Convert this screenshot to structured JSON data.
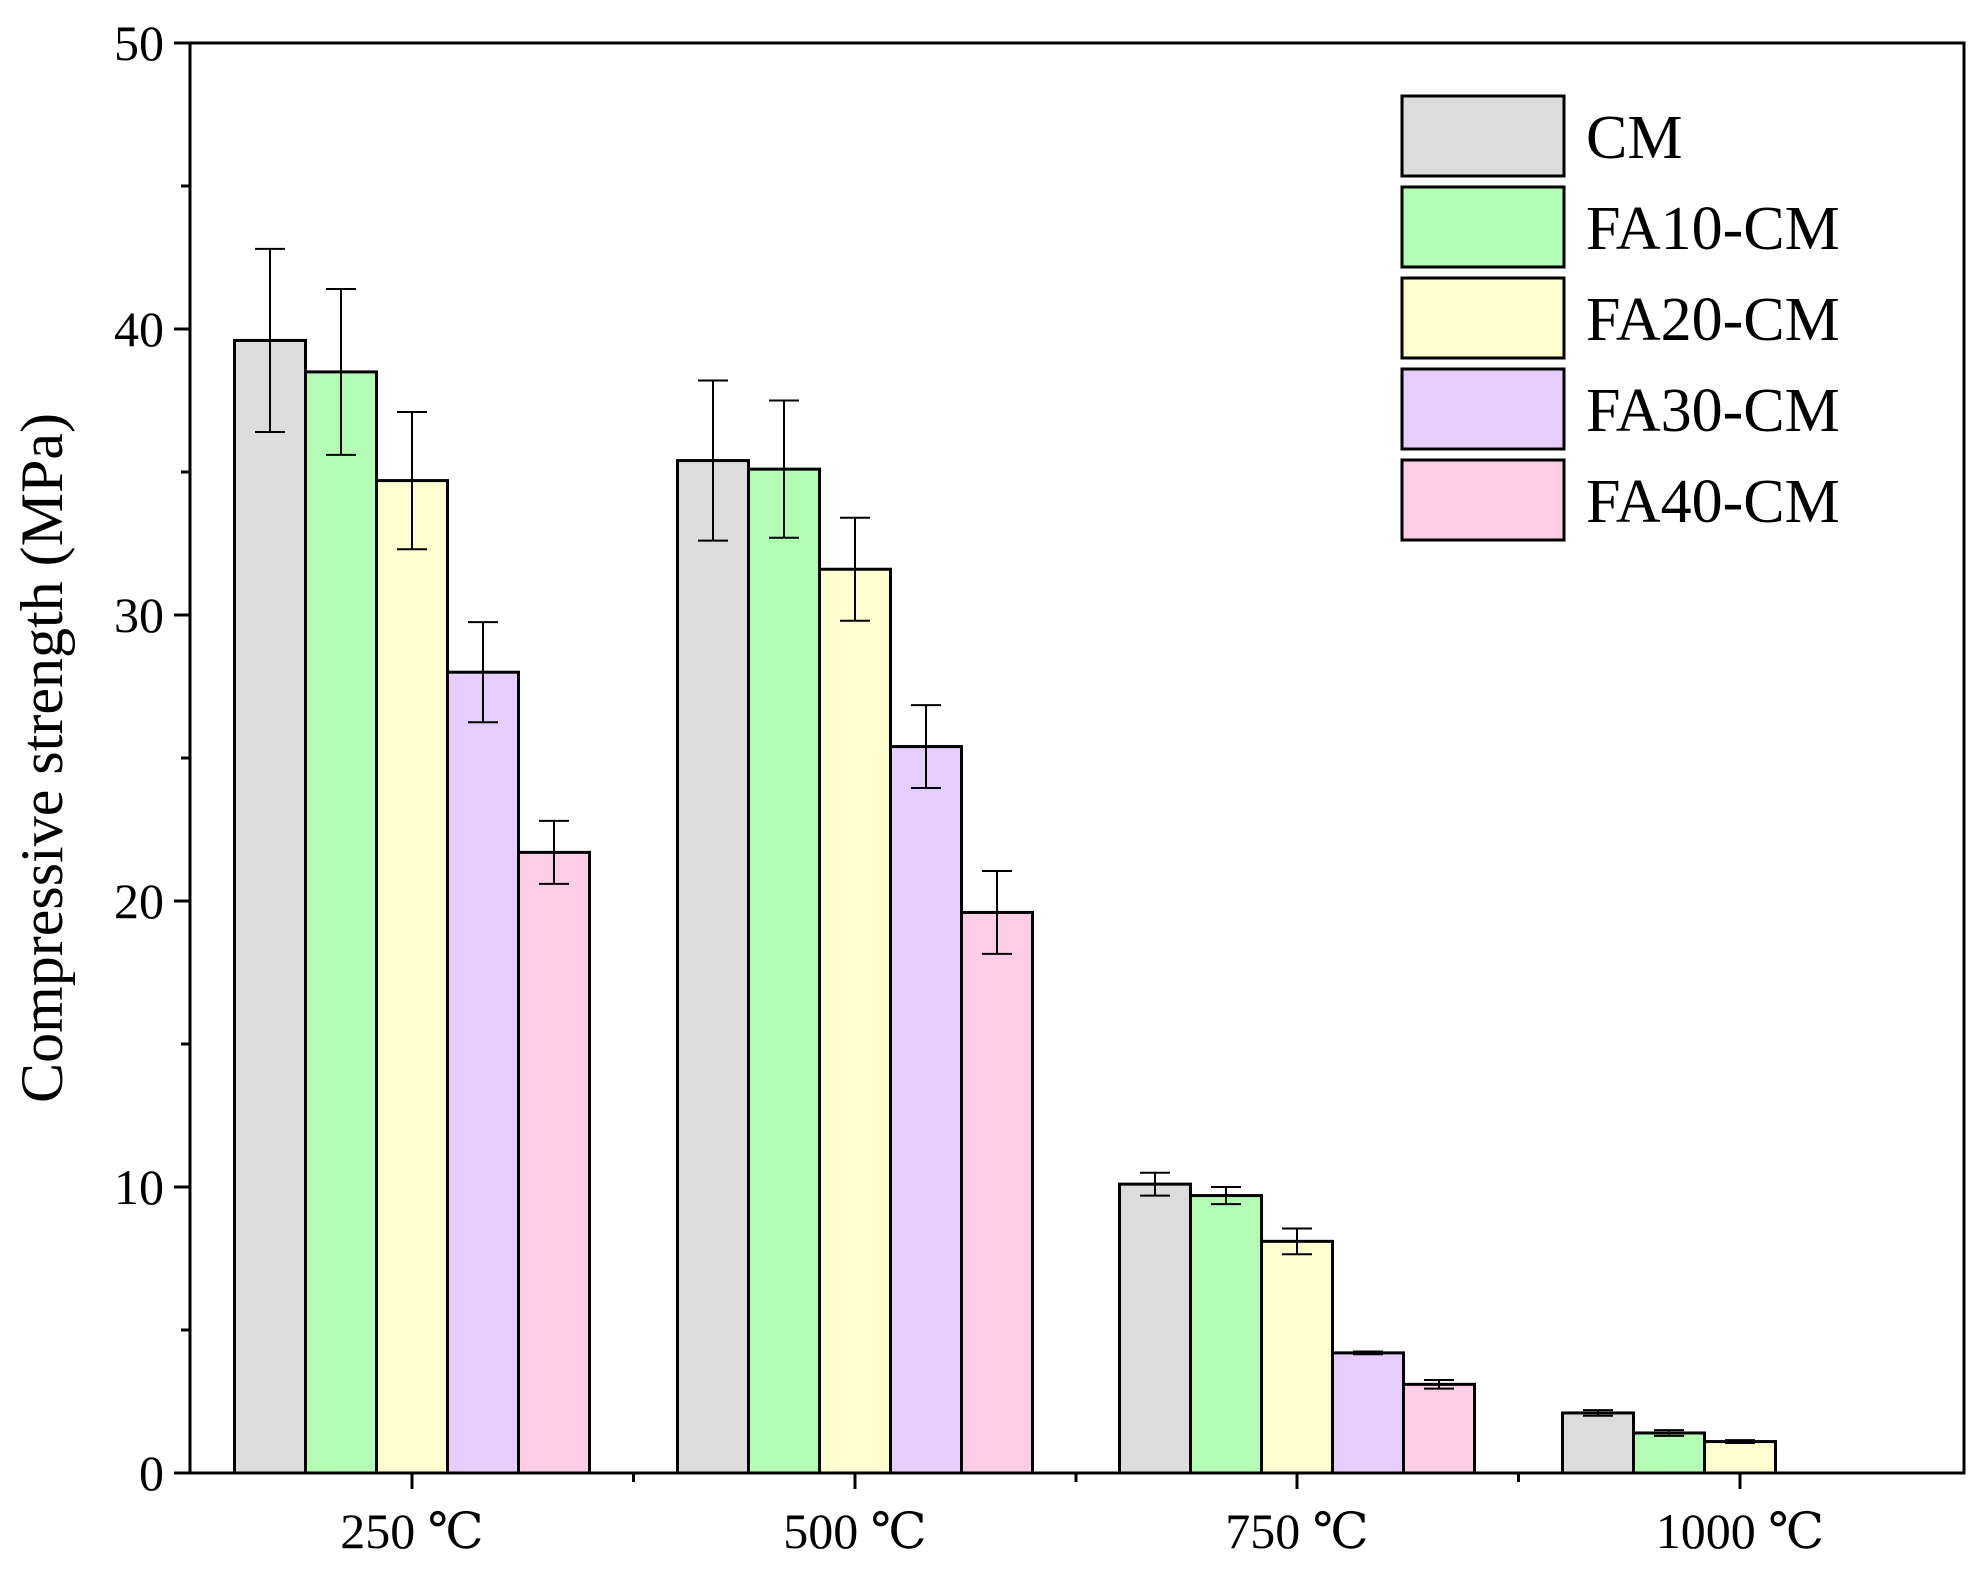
{
  "chart_data": {
    "type": "bar",
    "title": "",
    "xlabel": "",
    "ylabel": "Compressive strength (MPa)",
    "ylim": [
      0,
      50
    ],
    "yticks": [
      0,
      10,
      20,
      30,
      40,
      50
    ],
    "grid": false,
    "legend_position": "top-right",
    "categories": [
      "250 ℃",
      "500 ℃",
      "750 ℃",
      "1000 ℃"
    ],
    "series": [
      {
        "name": "CM",
        "color": "#dcdcdc",
        "values": [
          39.6,
          35.4,
          10.1,
          2.1
        ],
        "errors": [
          3.2,
          2.8,
          0.4,
          0.1
        ]
      },
      {
        "name": "FA10-CM",
        "color": "#b3fcb3",
        "values": [
          38.5,
          35.1,
          9.7,
          1.4
        ],
        "errors": [
          2.9,
          2.4,
          0.3,
          0.1
        ]
      },
      {
        "name": "FA20-CM",
        "color": "#fdfdcd",
        "values": [
          34.7,
          31.6,
          8.1,
          1.1
        ],
        "errors": [
          2.4,
          1.8,
          0.45,
          0.05
        ]
      },
      {
        "name": "FA30-CM",
        "color": "#e5cdfd",
        "values": [
          28.0,
          25.4,
          4.2,
          null
        ],
        "errors": [
          1.75,
          1.45,
          0.05,
          null
        ]
      },
      {
        "name": "FA40-CM",
        "color": "#fdcde5",
        "values": [
          21.7,
          19.6,
          3.1,
          null
        ],
        "errors": [
          1.1,
          1.45,
          0.15,
          null
        ]
      }
    ]
  }
}
